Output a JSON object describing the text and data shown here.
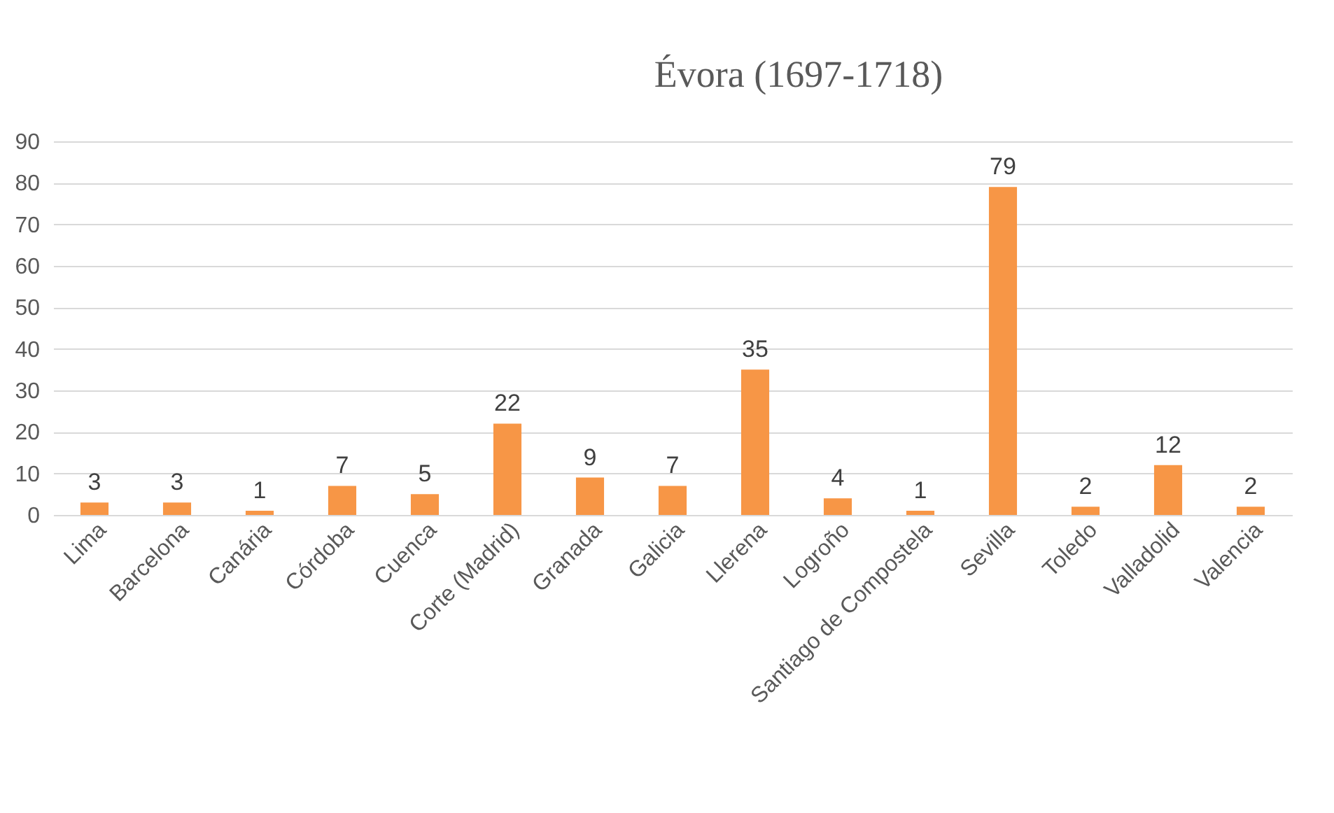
{
  "chart_data": {
    "type": "bar",
    "title": "Évora (1697-1718)",
    "categories": [
      "Lima",
      "Barcelona",
      "Canária",
      "Córdoba",
      "Cuenca",
      "Corte (Madrid)",
      "Granada",
      "Galicia",
      "Llerena",
      "Logroño",
      "Santiago de Compostela",
      "Sevilla",
      "Toledo",
      "Valladolid",
      "Valencia"
    ],
    "values": [
      3,
      3,
      1,
      7,
      5,
      22,
      9,
      7,
      35,
      4,
      1,
      79,
      2,
      12,
      2
    ],
    "color": "#f79646",
    "ylim": [
      0,
      90
    ],
    "yticks": [
      0,
      10,
      20,
      30,
      40,
      50,
      60,
      70,
      80,
      90
    ],
    "grid": "y",
    "data_labels": true
  }
}
